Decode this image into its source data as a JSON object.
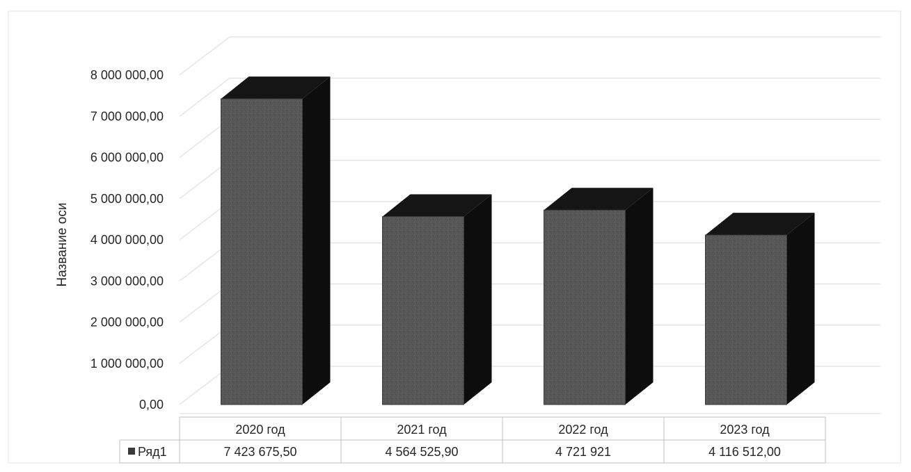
{
  "chart_data": {
    "type": "bar",
    "style": "3d-column",
    "categories": [
      "2020 год",
      "2021 год",
      "2022 год",
      "2023 год"
    ],
    "series": [
      {
        "name": "Ряд1",
        "values": [
          7423675.5,
          4564525.9,
          4721921,
          4116512.0
        ]
      }
    ],
    "value_labels": [
      "7 423 675,50",
      "4 564 525,90",
      "4 721 921",
      "4 116 512,00"
    ],
    "ylabel": "Название оси",
    "ylim": [
      0,
      8000000
    ],
    "ytick_labels": [
      "0,00",
      "1 000 000,00",
      "2 000 000,00",
      "3 000 000,00",
      "4 000 000,00",
      "5 000 000,00",
      "6 000 000,00",
      "7 000 000,00",
      "8 000 000,00"
    ],
    "grid": true,
    "data_table": true,
    "legend": "data-table",
    "colors": {
      "bar_front": "#565656",
      "bar_side": "#0d0d0d",
      "bar_top": "#151515",
      "gridline": "#d9d9d9",
      "text": "#262626"
    }
  }
}
